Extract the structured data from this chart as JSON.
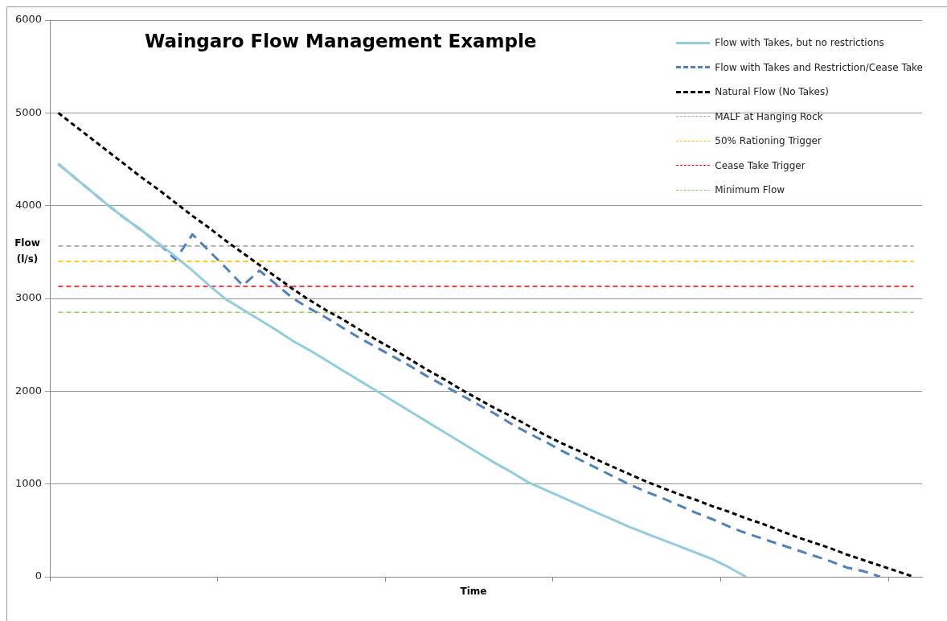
{
  "chart_data": {
    "type": "line",
    "title": "Waingaro Flow Management Example",
    "xlabel": "Time",
    "ylabel": "Flow\n(l/s)",
    "categories": [
      null,
      null,
      null,
      null,
      null,
      null,
      null,
      null,
      null,
      null,
      null,
      null,
      null,
      null,
      null,
      null,
      null,
      null,
      null,
      null,
      null,
      null,
      null,
      null,
      null,
      null,
      null,
      null,
      null,
      null,
      null,
      null,
      null,
      null,
      null,
      null,
      null,
      null,
      null,
      null,
      null,
      null,
      null,
      null,
      null,
      null,
      null,
      null,
      null,
      null,
      null,
      null
    ],
    "ylim": [
      0,
      6000
    ],
    "yticks": [
      0,
      1000,
      2000,
      3000,
      4000,
      5000,
      6000
    ],
    "grid": "y",
    "legend": "top right",
    "marker": "none",
    "series": [
      {
        "name": "Flow with Takes, but no restrictions",
        "color": "#93cddd",
        "line_style": "solid",
        "values": [
          4450,
          4300,
          4150,
          4000,
          3860,
          3730,
          3590,
          3450,
          3300,
          3140,
          2990,
          2880,
          2770,
          2660,
          2540,
          2440,
          2330,
          2220,
          2110,
          2000,
          1890,
          1780,
          1670,
          1560,
          1450,
          1340,
          1230,
          1130,
          1020,
          940,
          860,
          780,
          700,
          620,
          540,
          470,
          400,
          330,
          260,
          190,
          100,
          0,
          null,
          null,
          null,
          null,
          null,
          null,
          null,
          null,
          null,
          null
        ]
      },
      {
        "name": "Flow with Takes and Restriction/Cease Take",
        "color": "#4f81bd",
        "line_style": "dashed",
        "values": [
          4450,
          4300,
          4150,
          4000,
          3860,
          3730,
          3590,
          3420,
          3690,
          3510,
          3330,
          3140,
          3300,
          3150,
          3000,
          2890,
          2790,
          2680,
          2570,
          2470,
          2370,
          2270,
          2160,
          2060,
          1960,
          1860,
          1760,
          1650,
          1550,
          1460,
          1360,
          1270,
          1180,
          1090,
          1000,
          920,
          850,
          770,
          690,
          620,
          540,
          470,
          410,
          350,
          290,
          230,
          170,
          100,
          60,
          0,
          null,
          null
        ]
      },
      {
        "name": "Natural Flow (No Takes)",
        "color": "#000000",
        "line_style": "dashed",
        "values": [
          5000,
          4860,
          4720,
          4580,
          4440,
          4300,
          4170,
          4030,
          3890,
          3760,
          3620,
          3490,
          3360,
          3230,
          3100,
          2980,
          2870,
          2770,
          2660,
          2550,
          2450,
          2340,
          2230,
          2130,
          2020,
          1920,
          1820,
          1730,
          1630,
          1530,
          1440,
          1360,
          1270,
          1190,
          1110,
          1030,
          960,
          890,
          830,
          760,
          700,
          630,
          570,
          500,
          430,
          370,
          310,
          240,
          180,
          120,
          60,
          0
        ]
      },
      {
        "name": "MALF at Hanging Rock",
        "color": "#a6a6a6",
        "line_style": "dashed",
        "values": [
          3565,
          3565,
          3565,
          3565,
          3565,
          3565,
          3565,
          3565,
          3565,
          3565,
          3565,
          3565,
          3565,
          3565,
          3565,
          3565,
          3565,
          3565,
          3565,
          3565,
          3565,
          3565,
          3565,
          3565,
          3565,
          3565,
          3565,
          3565,
          3565,
          3565,
          3565,
          3565,
          3565,
          3565,
          3565,
          3565,
          3565,
          3565,
          3565,
          3565,
          3565,
          3565,
          3565,
          3565,
          3565,
          3565,
          3565,
          3565,
          3565,
          3565,
          3565,
          3565
        ]
      },
      {
        "name": "50% Rationing Trigger",
        "color": "#ffc000",
        "line_style": "dashed",
        "values": [
          3400,
          3400,
          3400,
          3400,
          3400,
          3400,
          3400,
          3400,
          3400,
          3400,
          3400,
          3400,
          3400,
          3400,
          3400,
          3400,
          3400,
          3400,
          3400,
          3400,
          3400,
          3400,
          3400,
          3400,
          3400,
          3400,
          3400,
          3400,
          3400,
          3400,
          3400,
          3400,
          3400,
          3400,
          3400,
          3400,
          3400,
          3400,
          3400,
          3400,
          3400,
          3400,
          3400,
          3400,
          3400,
          3400,
          3400,
          3400,
          3400,
          3400,
          3400,
          3400
        ]
      },
      {
        "name": "Cease Take Trigger",
        "color": "#ff0000",
        "line_style": "dashed",
        "values": [
          3130,
          3130,
          3130,
          3130,
          3130,
          3130,
          3130,
          3130,
          3130,
          3130,
          3130,
          3130,
          3130,
          3130,
          3130,
          3130,
          3130,
          3130,
          3130,
          3130,
          3130,
          3130,
          3130,
          3130,
          3130,
          3130,
          3130,
          3130,
          3130,
          3130,
          3130,
          3130,
          3130,
          3130,
          3130,
          3130,
          3130,
          3130,
          3130,
          3130,
          3130,
          3130,
          3130,
          3130,
          3130,
          3130,
          3130,
          3130,
          3130,
          3130,
          3130,
          3130
        ]
      },
      {
        "name": "Minimum Flow",
        "color": "#92d050",
        "line_style": "dashed",
        "values": [
          2850,
          2850,
          2850,
          2850,
          2850,
          2850,
          2850,
          2850,
          2850,
          2850,
          2850,
          2850,
          2850,
          2850,
          2850,
          2850,
          2850,
          2850,
          2850,
          2850,
          2850,
          2850,
          2850,
          2850,
          2850,
          2850,
          2850,
          2850,
          2850,
          2850,
          2850,
          2850,
          2850,
          2850,
          2850,
          2850,
          2850,
          2850,
          2850,
          2850,
          2850,
          2850,
          2850,
          2850,
          2850,
          2850,
          2850,
          2850,
          2850,
          2850,
          2850,
          2850
        ]
      }
    ]
  }
}
